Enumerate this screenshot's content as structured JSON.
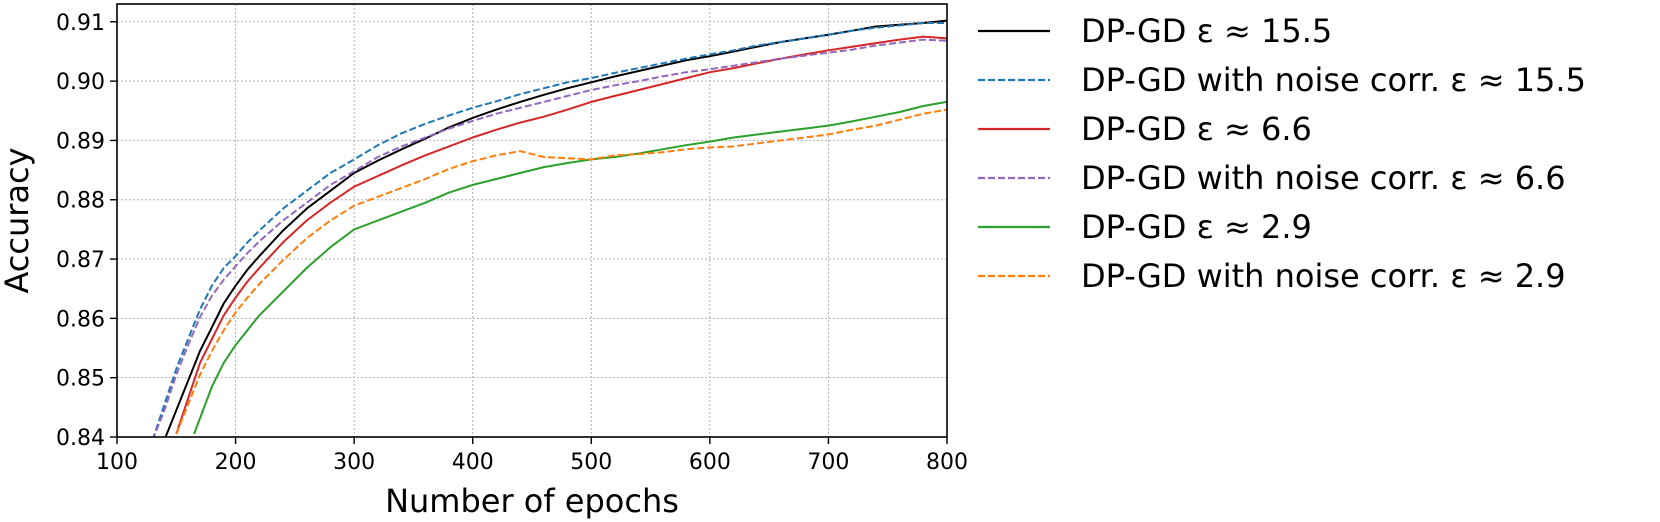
{
  "chart_data": {
    "type": "line",
    "xlabel": "Number of epochs",
    "ylabel": "Accuracy",
    "xlim": [
      100,
      800
    ],
    "ylim": [
      0.84,
      0.913
    ],
    "xticks": [
      "100",
      "200",
      "300",
      "400",
      "500",
      "600",
      "700",
      "800"
    ],
    "yticks": [
      "0.84",
      "0.85",
      "0.86",
      "0.87",
      "0.88",
      "0.89",
      "0.90",
      "0.91"
    ],
    "grid": true,
    "legend_position": "outside-right",
    "series": [
      {
        "name": "DP-GD ε ≈ 15.5",
        "color": "#000000",
        "dash": "solid",
        "x": [
          140,
          150,
          160,
          170,
          180,
          190,
          200,
          210,
          220,
          240,
          260,
          280,
          300,
          320,
          340,
          360,
          380,
          400,
          420,
          440,
          460,
          480,
          500,
          520,
          540,
          560,
          580,
          600,
          620,
          640,
          660,
          680,
          700,
          720,
          740,
          760,
          780,
          800
        ],
        "y": [
          0.8395,
          0.8445,
          0.8495,
          0.8545,
          0.8585,
          0.8625,
          0.8655,
          0.8682,
          0.8705,
          0.8748,
          0.8785,
          0.8815,
          0.8845,
          0.8866,
          0.8885,
          0.8903,
          0.8922,
          0.8938,
          0.8952,
          0.8965,
          0.8977,
          0.8988,
          0.8998,
          0.9008,
          0.9017,
          0.9026,
          0.9035,
          0.9042,
          0.905,
          0.9058,
          0.9066,
          0.9072,
          0.9078,
          0.9085,
          0.9092,
          0.9095,
          0.9098,
          0.9102
        ]
      },
      {
        "name": "DP-GD with noise corr. ε ≈ 15.5",
        "color": "#1f77b4",
        "dash": "dashed",
        "x": [
          130,
          140,
          150,
          160,
          170,
          180,
          190,
          200,
          210,
          220,
          240,
          260,
          280,
          300,
          320,
          340,
          360,
          380,
          400,
          420,
          440,
          460,
          480,
          500,
          520,
          540,
          560,
          580,
          600,
          620,
          640,
          660,
          680,
          700,
          720,
          740,
          760,
          780,
          800
        ],
        "y": [
          0.8395,
          0.8455,
          0.8515,
          0.8565,
          0.8615,
          0.8655,
          0.8685,
          0.8705,
          0.8728,
          0.8748,
          0.8785,
          0.8815,
          0.8845,
          0.8868,
          0.8892,
          0.8912,
          0.8928,
          0.8942,
          0.8955,
          0.8966,
          0.8978,
          0.8988,
          0.8998,
          0.9005,
          0.9014,
          0.9022,
          0.903,
          0.9038,
          0.9045,
          0.9052,
          0.906,
          0.9066,
          0.9072,
          0.9078,
          0.9085,
          0.909,
          0.9094,
          0.9098,
          0.9098
        ]
      },
      {
        "name": "DP-GD ε ≈ 6.6",
        "color": "#d62728",
        "dash": "solid",
        "x": [
          150,
          160,
          170,
          180,
          190,
          200,
          210,
          220,
          240,
          260,
          280,
          300,
          320,
          340,
          360,
          380,
          400,
          420,
          440,
          460,
          480,
          500,
          520,
          540,
          560,
          580,
          600,
          620,
          640,
          660,
          680,
          700,
          720,
          740,
          760,
          780,
          800
        ],
        "y": [
          0.8405,
          0.8465,
          0.8525,
          0.8565,
          0.8605,
          0.8635,
          0.8662,
          0.8685,
          0.8728,
          0.8765,
          0.8795,
          0.8822,
          0.884,
          0.8858,
          0.8875,
          0.889,
          0.8905,
          0.8918,
          0.893,
          0.894,
          0.8952,
          0.8965,
          0.8975,
          0.8985,
          0.8995,
          0.9005,
          0.9015,
          0.9022,
          0.903,
          0.9038,
          0.9045,
          0.9052,
          0.9058,
          0.9064,
          0.907,
          0.9075,
          0.9072
        ]
      },
      {
        "name": "DP-GD with noise corr. ε ≈ 6.6",
        "color": "#9467bd",
        "dash": "dashed",
        "x": [
          130,
          140,
          150,
          160,
          170,
          180,
          190,
          200,
          210,
          220,
          240,
          260,
          280,
          300,
          320,
          340,
          360,
          380,
          400,
          420,
          440,
          460,
          480,
          500,
          520,
          540,
          560,
          580,
          600,
          620,
          640,
          660,
          680,
          700,
          720,
          740,
          760,
          780,
          800
        ],
        "y": [
          0.8395,
          0.8445,
          0.8505,
          0.8555,
          0.8602,
          0.8638,
          0.8665,
          0.8688,
          0.871,
          0.873,
          0.8765,
          0.8795,
          0.8825,
          0.8848,
          0.8872,
          0.889,
          0.8905,
          0.892,
          0.8933,
          0.8945,
          0.8955,
          0.8965,
          0.8975,
          0.8985,
          0.8993,
          0.9,
          0.9008,
          0.9015,
          0.902,
          0.9026,
          0.9032,
          0.9038,
          0.9043,
          0.9048,
          0.9053,
          0.906,
          0.9065,
          0.907,
          0.9068
        ]
      },
      {
        "name": "DP-GD ε ≈ 2.9",
        "color": "#2ca02c",
        "dash": "solid",
        "x": [
          165,
          180,
          190,
          200,
          210,
          220,
          240,
          260,
          280,
          300,
          320,
          340,
          360,
          380,
          400,
          420,
          440,
          460,
          480,
          500,
          520,
          540,
          560,
          580,
          600,
          620,
          640,
          660,
          680,
          700,
          720,
          740,
          760,
          780,
          800
        ],
        "y": [
          0.8405,
          0.8485,
          0.8525,
          0.8555,
          0.858,
          0.8605,
          0.8645,
          0.8685,
          0.872,
          0.875,
          0.8765,
          0.878,
          0.8795,
          0.8812,
          0.8825,
          0.8835,
          0.8845,
          0.8855,
          0.8862,
          0.8868,
          0.8872,
          0.8878,
          0.8885,
          0.8892,
          0.8898,
          0.8905,
          0.891,
          0.8915,
          0.892,
          0.8925,
          0.8932,
          0.894,
          0.8948,
          0.8958,
          0.8965
        ]
      },
      {
        "name": "DP-GD with noise corr. ε ≈ 2.9",
        "color": "#ff7f0e",
        "dash": "dashed",
        "x": [
          150,
          160,
          170,
          180,
          190,
          200,
          210,
          220,
          240,
          260,
          280,
          300,
          320,
          340,
          360,
          380,
          400,
          420,
          440,
          460,
          480,
          500,
          520,
          540,
          560,
          580,
          600,
          620,
          640,
          660,
          680,
          700,
          720,
          740,
          760,
          780,
          800
        ],
        "y": [
          0.8405,
          0.8455,
          0.8505,
          0.8545,
          0.858,
          0.861,
          0.8635,
          0.8658,
          0.8698,
          0.8735,
          0.8765,
          0.879,
          0.8805,
          0.882,
          0.8835,
          0.8852,
          0.8865,
          0.8875,
          0.8882,
          0.8872,
          0.887,
          0.8868,
          0.8875,
          0.8877,
          0.888,
          0.8885,
          0.8888,
          0.889,
          0.8895,
          0.89,
          0.8905,
          0.891,
          0.8918,
          0.8925,
          0.8935,
          0.8945,
          0.8952
        ]
      }
    ]
  }
}
